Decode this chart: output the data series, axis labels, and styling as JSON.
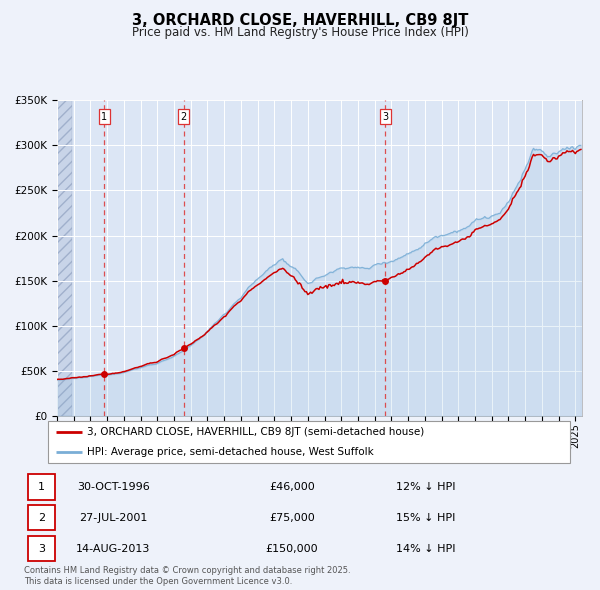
{
  "title": "3, ORCHARD CLOSE, HAVERHILL, CB9 8JT",
  "subtitle": "Price paid vs. HM Land Registry's House Price Index (HPI)",
  "ylim": [
    0,
    350000
  ],
  "yticks": [
    0,
    50000,
    100000,
    150000,
    200000,
    250000,
    300000,
    350000
  ],
  "ytick_labels": [
    "£0",
    "£50K",
    "£100K",
    "£150K",
    "£200K",
    "£250K",
    "£300K",
    "£350K"
  ],
  "background_color": "#eef2fa",
  "plot_bg_color": "#dce6f5",
  "grid_color": "#ffffff",
  "line1_color": "#cc0000",
  "line2_color": "#7aaed6",
  "purchase_years_dec": [
    1996.833,
    2001.583,
    2013.625
  ],
  "purchase_prices": [
    46000,
    75000,
    150000
  ],
  "purchase_labels": [
    "1",
    "2",
    "3"
  ],
  "vline_color": "#dd3333",
  "legend_label1": "3, ORCHARD CLOSE, HAVERHILL, CB9 8JT (semi-detached house)",
  "legend_label2": "HPI: Average price, semi-detached house, West Suffolk",
  "table_rows": [
    {
      "num": "1",
      "date": "30-OCT-1996",
      "price": "£46,000",
      "hpi": "12% ↓ HPI"
    },
    {
      "num": "2",
      "date": "27-JUL-2001",
      "price": "£75,000",
      "hpi": "15% ↓ HPI"
    },
    {
      "num": "3",
      "date": "14-AUG-2013",
      "price": "£150,000",
      "hpi": "14% ↓ HPI"
    }
  ],
  "footer": "Contains HM Land Registry data © Crown copyright and database right 2025.\nThis data is licensed under the Open Government Licence v3.0.",
  "title_fontsize": 10.5,
  "subtitle_fontsize": 8.5,
  "tick_fontsize": 7.5,
  "legend_fontsize": 7.5,
  "table_fontsize": 8.0,
  "footer_fontsize": 6.0
}
